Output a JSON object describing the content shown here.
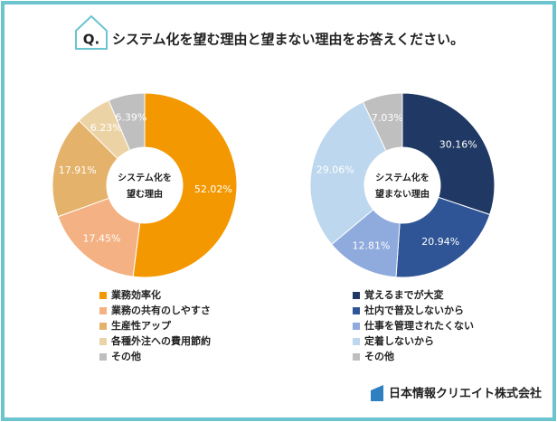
{
  "header": {
    "q": "Q.",
    "title": "システム化を望む理由と望まない理由をお答えください。"
  },
  "footer": {
    "company": "日本情報クリエイト株式会社"
  },
  "chart_data": [
    {
      "type": "donut",
      "center_label": [
        "システム化を",
        "望む理由"
      ],
      "categories": [
        "業務効率化",
        "業務の共有のしやすさ",
        "生産性アップ",
        "各種外注への費用節約",
        "その他"
      ],
      "values": [
        52.02,
        17.45,
        17.91,
        6.23,
        6.39
      ],
      "value_labels": [
        "52.02%",
        "17.45%",
        "17.91%",
        "6.23%",
        "6.39%"
      ],
      "colors": [
        "#f39800",
        "#f4b183",
        "#e5b26b",
        "#ecd3a6",
        "#bfbfbf"
      ]
    },
    {
      "type": "donut",
      "center_label": [
        "システム化を",
        "望まない理由"
      ],
      "categories": [
        "覚えるまでが大変",
        "社内で普及しないから",
        "仕事を管理されたくない",
        "定着しないから",
        "その他"
      ],
      "values": [
        30.16,
        20.94,
        12.81,
        29.06,
        7.03
      ],
      "value_labels": [
        "30.16%",
        "20.94%",
        "12.81%",
        "29.06%",
        "7.03%"
      ],
      "colors": [
        "#1f3864",
        "#2f5597",
        "#8faadc",
        "#bdd7ee",
        "#bfbfbf"
      ]
    }
  ]
}
